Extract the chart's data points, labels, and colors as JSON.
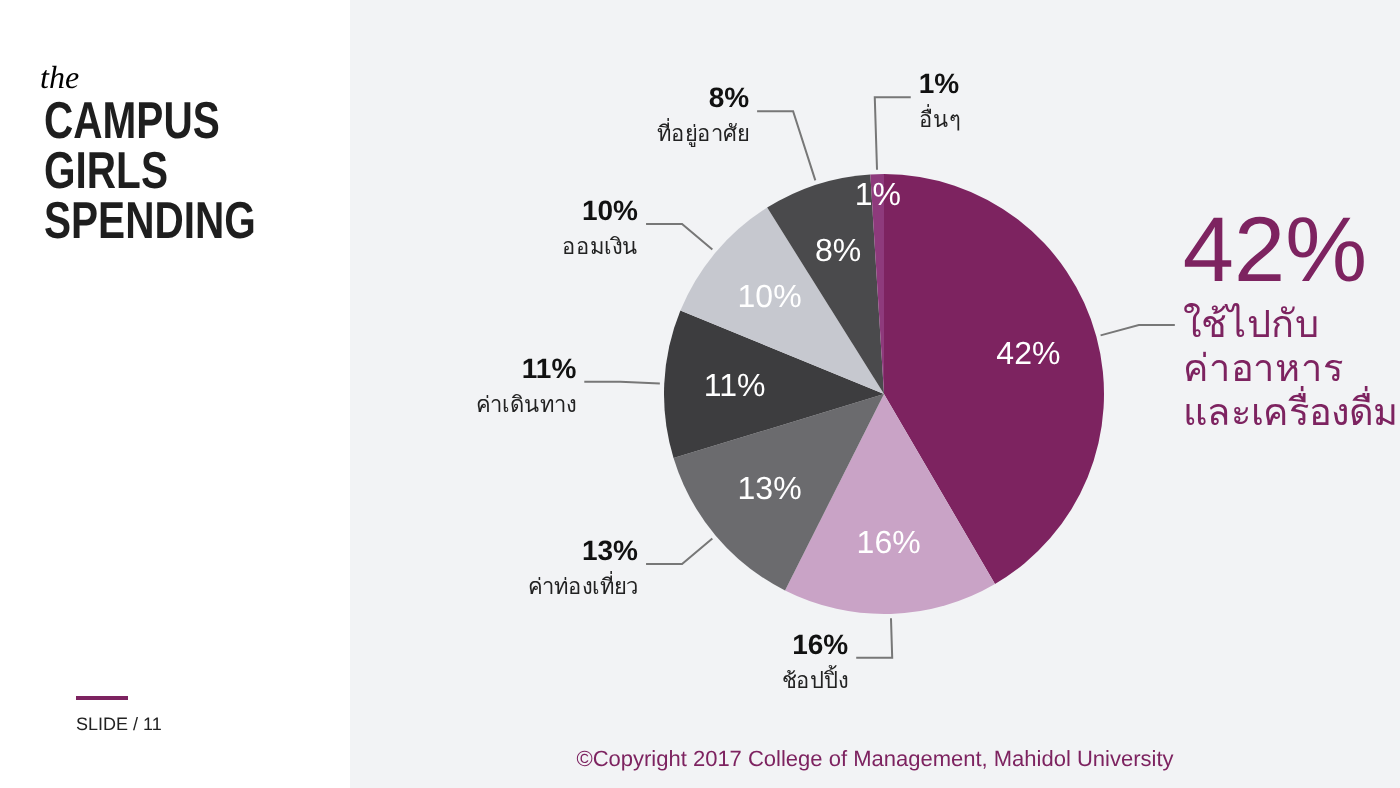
{
  "chart_data": {
    "type": "pie",
    "title": "the CAMPUS GIRLS SPENDING",
    "categories": [
      "ใช้ไปกับ\nค่าอาหาร\nและเครื่องดื่ม",
      "ช้อปปิ้ง",
      "ค่าท่องเที่ยว",
      "ค่าเดินทาง",
      "ออมเงิน",
      "ที่อยู่อาศัย",
      "อื่นๆ"
    ],
    "values": [
      42,
      16,
      13,
      11,
      10,
      8,
      1
    ],
    "colors": [
      "#7d2360",
      "#c9a3c6",
      "#6b6b6e",
      "#3d3d3f",
      "#c6c8cf",
      "#4a4a4c",
      "#8e3a7c"
    ],
    "value_labels": [
      "42%",
      "16%",
      "13%",
      "11%",
      "10%",
      "8%",
      "1%"
    ],
    "annotations": [
      "SLIDE / 11",
      "©Copyright 2017 College of Management, Mahidol University",
      "42%",
      "16%",
      "13%",
      "11%",
      "10%",
      "8%",
      "1%"
    ]
  }
}
